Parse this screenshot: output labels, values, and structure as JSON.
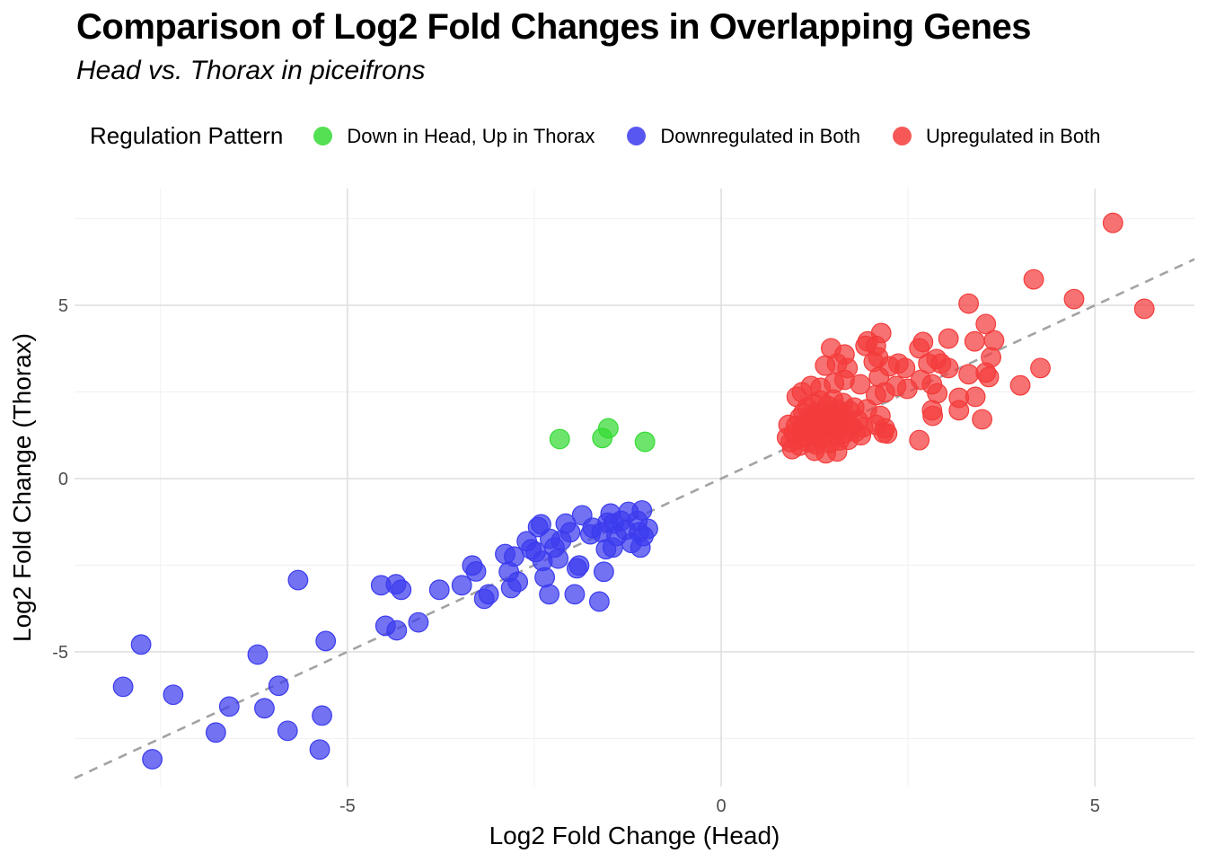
{
  "chart_data": {
    "type": "scatter",
    "title": "Comparison of Log2 Fold Changes in Overlapping Genes",
    "subtitle": "Head vs. Thorax in piceifrons",
    "xlabel": "Log2 Fold Change (Head)",
    "ylabel": "Log2 Fold Change (Thorax)",
    "legend_title": "Regulation Pattern",
    "legend_position": "top",
    "grid": true,
    "xlim": [
      -8.65,
      6.33
    ],
    "ylim": [
      -8.89,
      8.37
    ],
    "x_ticks": [
      -5,
      0,
      5
    ],
    "y_ticks": [
      -5,
      0,
      5
    ],
    "x_minor": [
      -7.5,
      -2.5,
      2.5
    ],
    "y_minor": [
      -7.5,
      -2.5,
      2.5,
      7.5
    ],
    "reference_line": {
      "type": "identity y=x",
      "style": "dashed",
      "color": "#a3a3a3"
    },
    "colors": {
      "green": "#35db35",
      "blue": "#3b3bee",
      "red": "#f43b3b",
      "grid_major": "#e2e2e2",
      "grid_minor": "#f0f0f0",
      "tick_label": "#4d4d4d",
      "axis_title": "#000000"
    },
    "series": [
      {
        "name": "Down in Head, Up in Thorax",
        "color": "#35db35",
        "points": [
          [
            -2.16,
            1.14
          ],
          [
            -1.59,
            1.17
          ],
          [
            -1.51,
            1.45
          ],
          [
            -1.02,
            1.06
          ]
        ]
      },
      {
        "name": "Downregulated in Both",
        "color": "#3b3bee",
        "points": [
          [
            -8.0,
            -6.01
          ],
          [
            -7.76,
            -4.79
          ],
          [
            -7.61,
            -8.1
          ],
          [
            -7.33,
            -6.24
          ],
          [
            -6.76,
            -7.33
          ],
          [
            -6.58,
            -6.58
          ],
          [
            -6.2,
            -5.08
          ],
          [
            -6.11,
            -6.63
          ],
          [
            -5.92,
            -5.98
          ],
          [
            -5.8,
            -7.28
          ],
          [
            -5.66,
            -2.93
          ],
          [
            -5.37,
            -7.82
          ],
          [
            -5.34,
            -6.84
          ],
          [
            -5.29,
            -4.69
          ],
          [
            -4.55,
            -3.08
          ],
          [
            -4.49,
            -4.25
          ],
          [
            -4.35,
            -3.05
          ],
          [
            -4.34,
            -4.38
          ],
          [
            -4.28,
            -3.21
          ],
          [
            -4.05,
            -4.15
          ],
          [
            -3.77,
            -3.21
          ],
          [
            -3.47,
            -3.08
          ],
          [
            -3.33,
            -2.51
          ],
          [
            -3.28,
            -2.68
          ],
          [
            -3.17,
            -3.47
          ],
          [
            -3.11,
            -3.34
          ],
          [
            -2.89,
            -2.18
          ],
          [
            -2.84,
            -2.69
          ],
          [
            -2.81,
            -3.16
          ],
          [
            -2.77,
            -2.25
          ],
          [
            -2.72,
            -2.98
          ],
          [
            -2.6,
            -1.81
          ],
          [
            -2.54,
            -2.04
          ],
          [
            -2.48,
            -2.12
          ],
          [
            -2.45,
            -1.4
          ],
          [
            -2.41,
            -1.32
          ],
          [
            -2.39,
            -2.38
          ],
          [
            -2.36,
            -2.85
          ],
          [
            -2.3,
            -3.34
          ],
          [
            -2.29,
            -1.74
          ],
          [
            -2.23,
            -1.99
          ],
          [
            -2.18,
            -2.31
          ],
          [
            -2.14,
            -1.79
          ],
          [
            -2.08,
            -1.3
          ],
          [
            -2.02,
            -1.55
          ],
          [
            -1.96,
            -3.34
          ],
          [
            -1.93,
            -2.59
          ],
          [
            -1.9,
            -2.51
          ],
          [
            -1.86,
            -1.06
          ],
          [
            -1.75,
            -1.61
          ],
          [
            -1.72,
            -1.42
          ],
          [
            -1.63,
            -3.55
          ],
          [
            -1.6,
            -1.55
          ],
          [
            -1.57,
            -2.69
          ],
          [
            -1.54,
            -2.04
          ],
          [
            -1.52,
            -1.27
          ],
          [
            -1.48,
            -1.01
          ],
          [
            -1.45,
            -1.99
          ],
          [
            -1.44,
            -1.3
          ],
          [
            -1.4,
            -1.66
          ],
          [
            -1.34,
            -1.22
          ],
          [
            -1.28,
            -1.48
          ],
          [
            -1.24,
            -0.96
          ],
          [
            -1.2,
            -1.86
          ],
          [
            -1.12,
            -1.22
          ],
          [
            -1.1,
            -1.55
          ],
          [
            -1.08,
            -1.99
          ],
          [
            -1.06,
            -0.92
          ],
          [
            -1.04,
            -1.66
          ],
          [
            -0.98,
            -1.45
          ]
        ]
      },
      {
        "name": "Upregulated in Both",
        "color": "#f43b3b",
        "points": [
          [
            5.24,
            7.38
          ],
          [
            5.66,
            4.9
          ],
          [
            4.72,
            5.18
          ],
          [
            4.18,
            5.75
          ],
          [
            3.31,
            5.05
          ],
          [
            3.54,
            4.46
          ],
          [
            2.14,
            4.2
          ],
          [
            3.04,
            4.04
          ],
          [
            3.65,
            3.99
          ],
          [
            3.39,
            3.96
          ],
          [
            2.7,
            3.94
          ],
          [
            1.96,
            3.96
          ],
          [
            3.61,
            3.5
          ],
          [
            4.27,
            3.19
          ],
          [
            4.0,
            2.69
          ],
          [
            3.58,
            2.93
          ],
          [
            1.47,
            3.76
          ],
          [
            1.65,
            3.58
          ],
          [
            1.93,
            3.83
          ],
          [
            2.07,
            3.83
          ],
          [
            2.1,
            3.5
          ],
          [
            1.39,
            3.26
          ],
          [
            1.55,
            3.32
          ],
          [
            1.69,
            3.19
          ],
          [
            2.04,
            3.37
          ],
          [
            2.65,
            3.76
          ],
          [
            2.77,
            3.32
          ],
          [
            2.88,
            3.45
          ],
          [
            2.94,
            3.32
          ],
          [
            3.04,
            3.19
          ],
          [
            3.31,
            3.01
          ],
          [
            3.54,
            3.06
          ],
          [
            2.25,
            3.24
          ],
          [
            2.37,
            3.32
          ],
          [
            2.46,
            3.19
          ],
          [
            1.51,
            2.75
          ],
          [
            1.65,
            2.85
          ],
          [
            1.86,
            2.72
          ],
          [
            2.11,
            2.93
          ],
          [
            2.07,
            2.41
          ],
          [
            2.19,
            2.49
          ],
          [
            2.34,
            2.67
          ],
          [
            2.49,
            2.59
          ],
          [
            2.67,
            2.85
          ],
          [
            2.82,
            2.72
          ],
          [
            2.89,
            2.46
          ],
          [
            1.08,
            2.49
          ],
          [
            1.01,
            2.36
          ],
          [
            1.2,
            2.67
          ],
          [
            1.33,
            2.62
          ],
          [
            3.18,
            2.33
          ],
          [
            3.4,
            2.36
          ],
          [
            3.18,
            1.97
          ],
          [
            2.82,
            1.97
          ],
          [
            2.83,
            1.81
          ],
          [
            3.49,
            1.71
          ],
          [
            2.65,
            1.11
          ],
          [
            2.13,
            1.81
          ],
          [
            2.19,
            1.45
          ],
          [
            2.22,
            1.3
          ],
          [
            2.07,
            1.55
          ],
          [
            2.17,
            1.32
          ],
          [
            0.88,
            1.18
          ],
          [
            0.9,
            1.55
          ],
          [
            0.93,
            1.05
          ],
          [
            0.97,
            1.3
          ],
          [
            1.0,
            1.52
          ],
          [
            1.02,
            1.13
          ],
          [
            1.05,
            1.75
          ],
          [
            1.05,
            0.95
          ],
          [
            1.08,
            1.4
          ],
          [
            1.1,
            1.9
          ],
          [
            1.12,
            1.22
          ],
          [
            1.13,
            1.6
          ],
          [
            1.15,
            2.05
          ],
          [
            1.17,
            1.05
          ],
          [
            1.18,
            1.45
          ],
          [
            1.2,
            1.8
          ],
          [
            1.22,
            1.28
          ],
          [
            1.24,
            2.15
          ],
          [
            1.25,
            1.58
          ],
          [
            1.27,
            0.98
          ],
          [
            1.28,
            1.9
          ],
          [
            1.3,
            1.4
          ],
          [
            1.32,
            1.7
          ],
          [
            1.33,
            2.25
          ],
          [
            1.35,
            1.15
          ],
          [
            1.37,
            1.52
          ],
          [
            1.38,
            1.95
          ],
          [
            1.4,
            1.32
          ],
          [
            1.42,
            2.1
          ],
          [
            1.43,
            1.65
          ],
          [
            1.45,
            1.02
          ],
          [
            1.47,
            1.85
          ],
          [
            1.48,
            1.48
          ],
          [
            1.5,
            2.28
          ],
          [
            1.52,
            1.25
          ],
          [
            1.53,
            1.7
          ],
          [
            1.55,
            2.0
          ],
          [
            1.57,
            1.42
          ],
          [
            1.58,
            1.1
          ],
          [
            1.6,
            1.88
          ],
          [
            1.62,
            1.58
          ],
          [
            1.63,
            2.18
          ],
          [
            1.65,
            1.3
          ],
          [
            1.67,
            1.75
          ],
          [
            1.7,
            1.12
          ],
          [
            1.72,
            1.95
          ],
          [
            1.75,
            1.5
          ],
          [
            1.78,
            2.05
          ],
          [
            1.8,
            1.35
          ],
          [
            1.83,
            1.68
          ],
          [
            1.87,
            1.25
          ],
          [
            1.9,
            1.48
          ],
          [
            1.95,
            2.0
          ],
          [
            0.95,
            0.85
          ],
          [
            1.25,
            0.8
          ],
          [
            1.4,
            0.73
          ],
          [
            1.55,
            0.78
          ]
        ]
      }
    ]
  }
}
